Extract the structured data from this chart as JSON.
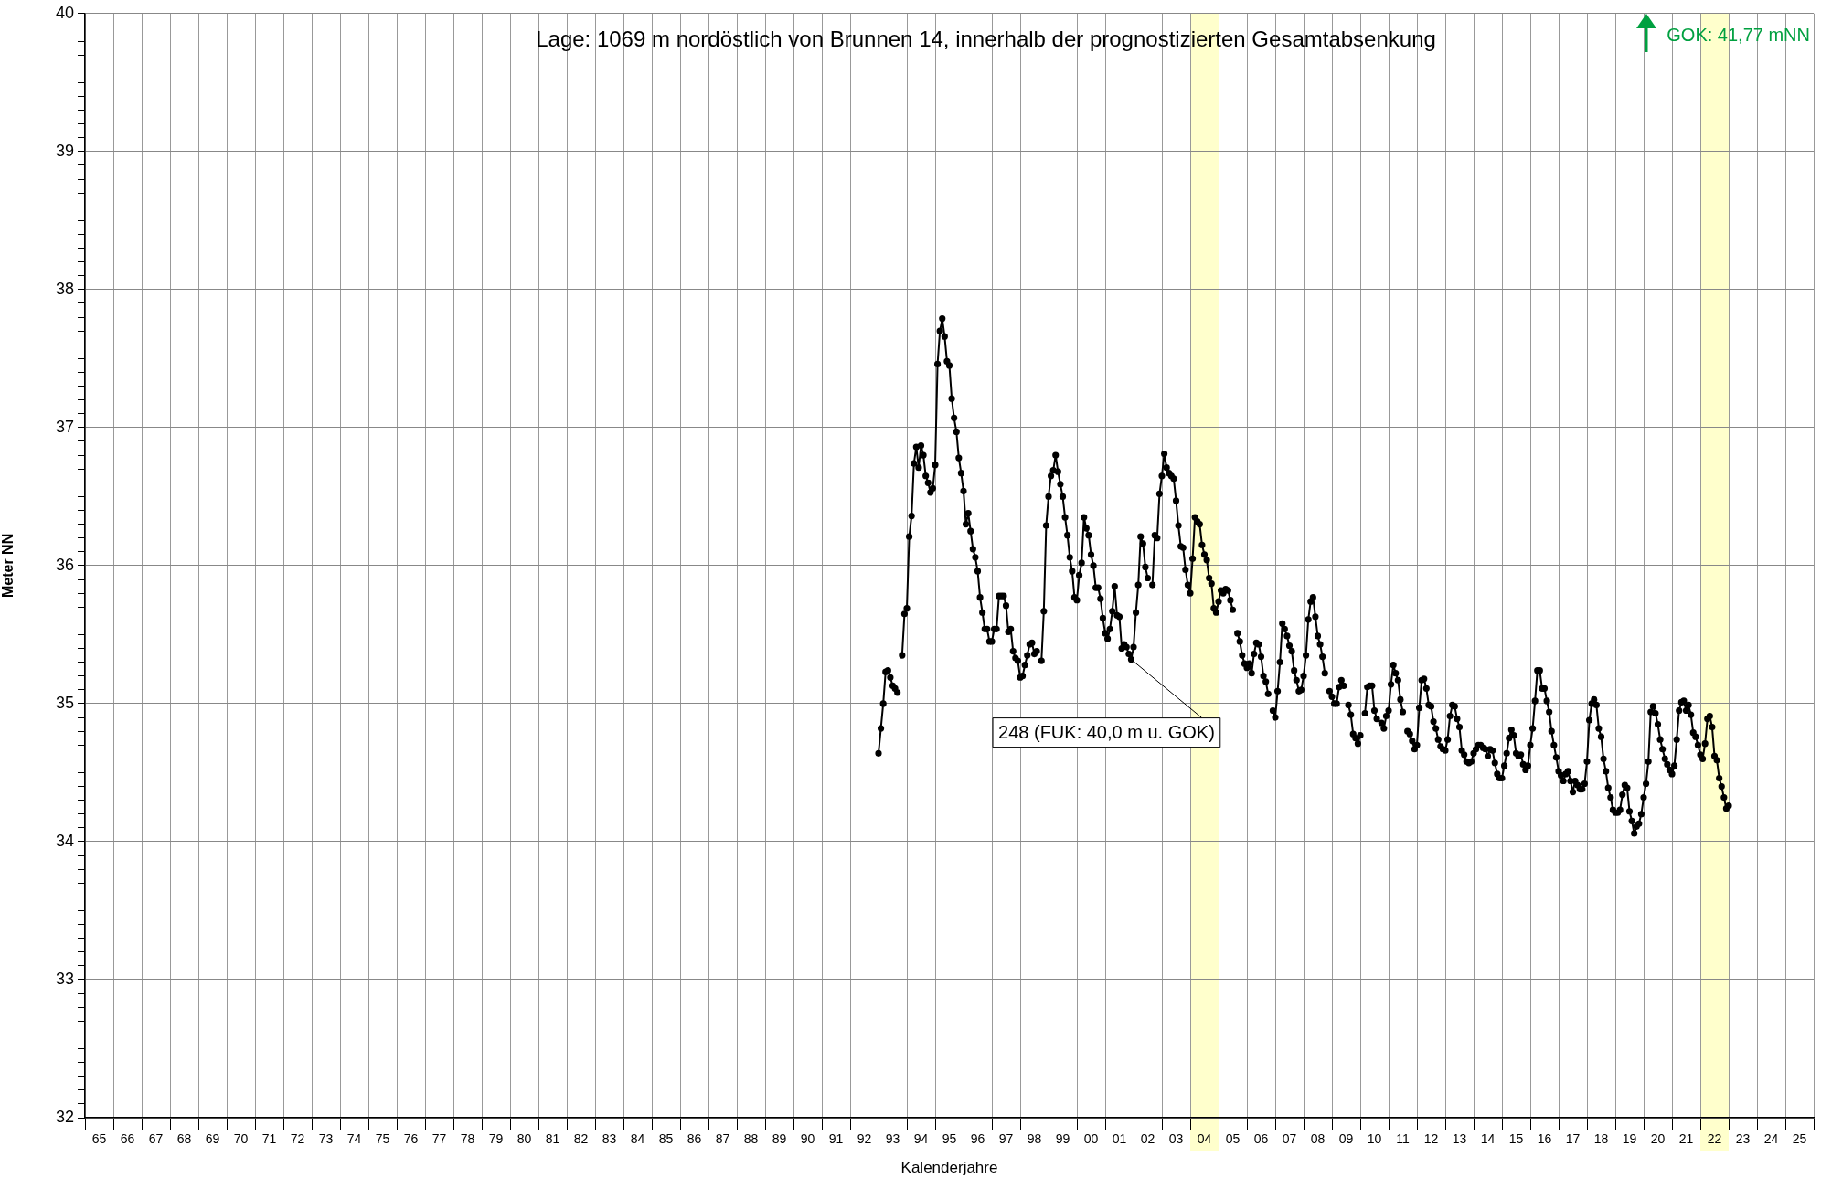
{
  "chart_data": {
    "type": "line",
    "title": "Lage: 1069 m nordöstlich von Brunnen 14, innerhalb der prognostizierten Gesamtabsenkung",
    "xlabel": "Kalenderjahre",
    "ylabel": "Meter NN",
    "annotations": [
      {
        "text": "248 (FUK: 40,0 m u. GOK)",
        "x": "2001-12",
        "y": 35.32
      },
      "GOK: 41,77 mNN"
    ],
    "grid": true,
    "marker": "circle",
    "xlim": [
      "1965",
      "2026"
    ],
    "ylim": [
      32,
      40
    ],
    "xticks": [
      {
        "value": "1965",
        "label": null
      },
      {
        "value": "1965-07",
        "label": "65"
      },
      {
        "value": "1966",
        "label": null
      },
      {
        "value": "1966-07",
        "label": "66"
      },
      {
        "value": "1967",
        "label": null
      },
      {
        "value": "1967-07",
        "label": "67"
      },
      {
        "value": "1968",
        "label": null
      },
      {
        "value": "1968-07",
        "label": "68"
      },
      {
        "value": "1969",
        "label": null
      },
      {
        "value": "1969-07",
        "label": "69"
      },
      {
        "value": "1970",
        "label": null
      },
      {
        "value": "1970-07",
        "label": "70"
      },
      {
        "value": "1971",
        "label": null
      },
      {
        "value": "1971-07",
        "label": "71"
      },
      {
        "value": "1972",
        "label": null
      },
      {
        "value": "1972-07",
        "label": "72"
      },
      {
        "value": "1973",
        "label": null
      },
      {
        "value": "1973-07",
        "label": "73"
      },
      {
        "value": "1974",
        "label": null
      },
      {
        "value": "1974-07",
        "label": "74"
      },
      {
        "value": "1975",
        "label": null
      },
      {
        "value": "1975-07",
        "label": "75"
      },
      {
        "value": "1976",
        "label": null
      },
      {
        "value": "1976-07",
        "label": "76"
      },
      {
        "value": "1977",
        "label": null
      },
      {
        "value": "1977-07",
        "label": "77"
      },
      {
        "value": "1978",
        "label": null
      },
      {
        "value": "1978-07",
        "label": "78"
      },
      {
        "value": "1979",
        "label": null
      },
      {
        "value": "1979-07",
        "label": "79"
      },
      {
        "value": "1980",
        "label": null
      },
      {
        "value": "1980-07",
        "label": "80"
      },
      {
        "value": "1981",
        "label": null
      },
      {
        "value": "1981-07",
        "label": "81"
      },
      {
        "value": "1982",
        "label": null
      },
      {
        "value": "1982-07",
        "label": "82"
      },
      {
        "value": "1983",
        "label": null
      },
      {
        "value": "1983-07",
        "label": "83"
      },
      {
        "value": "1984",
        "label": null
      },
      {
        "value": "1984-07",
        "label": "84"
      },
      {
        "value": "1985",
        "label": null
      },
      {
        "value": "1985-07",
        "label": "85"
      },
      {
        "value": "1986",
        "label": null
      },
      {
        "value": "1986-07",
        "label": "86"
      },
      {
        "value": "1987",
        "label": null
      },
      {
        "value": "1987-07",
        "label": "87"
      },
      {
        "value": "1988",
        "label": null
      },
      {
        "value": "1988-07",
        "label": "88"
      },
      {
        "value": "1989",
        "label": null
      },
      {
        "value": "1989-07",
        "label": "89"
      },
      {
        "value": "1990",
        "label": null
      },
      {
        "value": "1990-07",
        "label": "90"
      },
      {
        "value": "1991",
        "label": null
      },
      {
        "value": "1991-07",
        "label": "91"
      },
      {
        "value": "1992",
        "label": null
      },
      {
        "value": "1992-07",
        "label": "92"
      },
      {
        "value": "1993",
        "label": null
      },
      {
        "value": "1993-07",
        "label": "93"
      },
      {
        "value": "1994",
        "label": null
      },
      {
        "value": "1994-07",
        "label": "94"
      },
      {
        "value": "1995",
        "label": null
      },
      {
        "value": "1995-07",
        "label": "95"
      },
      {
        "value": "1996",
        "label": null
      },
      {
        "value": "1996-07",
        "label": "96"
      },
      {
        "value": "1997",
        "label": null
      },
      {
        "value": "1997-07",
        "label": "97"
      },
      {
        "value": "1998",
        "label": null
      },
      {
        "value": "1998-07",
        "label": "98"
      },
      {
        "value": "1999",
        "label": null
      },
      {
        "value": "1999-07",
        "label": "99"
      },
      {
        "value": "2000",
        "label": null
      },
      {
        "value": "2000-07",
        "label": "00"
      },
      {
        "value": "2001",
        "label": null
      },
      {
        "value": "2001-07",
        "label": "01"
      },
      {
        "value": "2002",
        "label": null
      },
      {
        "value": "2002-07",
        "label": "02"
      },
      {
        "value": "2003",
        "label": null
      },
      {
        "value": "2003-07",
        "label": "03"
      },
      {
        "value": "2004",
        "label": null
      },
      {
        "value": "2004-07",
        "label": "04"
      },
      {
        "value": "2005",
        "label": null
      },
      {
        "value": "2005-07",
        "label": "05"
      },
      {
        "value": "2006",
        "label": null
      },
      {
        "value": "2006-07",
        "label": "06"
      },
      {
        "value": "2007",
        "label": null
      },
      {
        "value": "2007-07",
        "label": "07"
      },
      {
        "value": "2008",
        "label": null
      },
      {
        "value": "2008-07",
        "label": "08"
      },
      {
        "value": "2009",
        "label": null
      },
      {
        "value": "2009-07",
        "label": "09"
      },
      {
        "value": "2010",
        "label": null
      },
      {
        "value": "2010-07",
        "label": "10"
      },
      {
        "value": "2011",
        "label": null
      },
      {
        "value": "2011-07",
        "label": "11"
      },
      {
        "value": "2012",
        "label": null
      },
      {
        "value": "2012-07",
        "label": "12"
      },
      {
        "value": "2013",
        "label": null
      },
      {
        "value": "2013-07",
        "label": "13"
      },
      {
        "value": "2014",
        "label": null
      },
      {
        "value": "2014-07",
        "label": "14"
      },
      {
        "value": "2015",
        "label": null
      },
      {
        "value": "2015-07",
        "label": "15"
      },
      {
        "value": "2016",
        "label": null
      },
      {
        "value": "2016-07",
        "label": "16"
      },
      {
        "value": "2017",
        "label": null
      },
      {
        "value": "2017-07",
        "label": "17"
      },
      {
        "value": "2018",
        "label": null
      },
      {
        "value": "2018-07",
        "label": "18"
      },
      {
        "value": "2019",
        "label": null
      },
      {
        "value": "2019-07",
        "label": "19"
      },
      {
        "value": "2020",
        "label": null
      },
      {
        "value": "2020-07",
        "label": "20"
      },
      {
        "value": "2021",
        "label": null
      },
      {
        "value": "2021-07",
        "label": "21"
      },
      {
        "value": "2022",
        "label": null
      },
      {
        "value": "2022-07",
        "label": "22"
      },
      {
        "value": "2023",
        "label": null
      },
      {
        "value": "2023-07",
        "label": "23"
      },
      {
        "value": "2024",
        "label": null
      },
      {
        "value": "2024-07",
        "label": "24"
      },
      {
        "value": "2025",
        "label": null
      },
      {
        "value": "2025-07",
        "label": "25"
      },
      {
        "value": "2026",
        "label": null
      }
    ],
    "yticks": [
      32,
      {
        "value": 32.1,
        "label": null
      },
      {
        "value": 32.2,
        "label": null
      },
      {
        "value": 32.3,
        "label": null
      },
      {
        "value": 32.4,
        "label": null
      },
      {
        "value": 32.5,
        "label": null
      },
      {
        "value": 32.6,
        "label": null
      },
      {
        "value": 32.7,
        "label": null
      },
      {
        "value": 32.8,
        "label": null
      },
      {
        "value": 32.9,
        "label": null
      },
      33,
      {
        "value": 33.1,
        "label": null
      },
      {
        "value": 33.2,
        "label": null
      },
      {
        "value": 33.3,
        "label": null
      },
      {
        "value": 33.4,
        "label": null
      },
      {
        "value": 33.5,
        "label": null
      },
      {
        "value": 33.6,
        "label": null
      },
      {
        "value": 33.7,
        "label": null
      },
      {
        "value": 33.8,
        "label": null
      },
      {
        "value": 33.9,
        "label": null
      },
      34,
      {
        "value": 34.1,
        "label": null
      },
      {
        "value": 34.2,
        "label": null
      },
      {
        "value": 34.3,
        "label": null
      },
      {
        "value": 34.4,
        "label": null
      },
      {
        "value": 34.5,
        "label": null
      },
      {
        "value": 34.6,
        "label": null
      },
      {
        "value": 34.7,
        "label": null
      },
      {
        "value": 34.8,
        "label": null
      },
      {
        "value": 34.9,
        "label": null
      },
      35,
      {
        "value": 35.1,
        "label": null
      },
      {
        "value": 35.2,
        "label": null
      },
      {
        "value": 35.3,
        "label": null
      },
      {
        "value": 35.4,
        "label": null
      },
      {
        "value": 35.5,
        "label": null
      },
      {
        "value": 35.6,
        "label": null
      },
      {
        "value": 35.7,
        "label": null
      },
      {
        "value": 35.8,
        "label": null
      },
      {
        "value": 35.9,
        "label": null
      },
      36,
      {
        "value": 36.1,
        "label": null
      },
      {
        "value": 36.2,
        "label": null
      },
      {
        "value": 36.3,
        "label": null
      },
      {
        "value": 36.4,
        "label": null
      },
      {
        "value": 36.5,
        "label": null
      },
      {
        "value": 36.6,
        "label": null
      },
      {
        "value": 36.7,
        "label": null
      },
      {
        "value": 36.8,
        "label": null
      },
      {
        "value": 36.9,
        "label": null
      },
      37,
      {
        "value": 37.1,
        "label": null
      },
      {
        "value": 37.2,
        "label": null
      },
      {
        "value": 37.3,
        "label": null
      },
      {
        "value": 37.4,
        "label": null
      },
      {
        "value": 37.5,
        "label": null
      },
      {
        "value": 37.6,
        "label": null
      },
      {
        "value": 37.7,
        "label": null
      },
      {
        "value": 37.8,
        "label": null
      },
      {
        "value": 37.9,
        "label": null
      },
      38,
      {
        "value": 38.1,
        "label": null
      },
      {
        "value": 38.2,
        "label": null
      },
      {
        "value": 38.3,
        "label": null
      },
      {
        "value": 38.4,
        "label": null
      },
      {
        "value": 38.5,
        "label": null
      },
      {
        "value": 38.6,
        "label": null
      },
      {
        "value": 38.7,
        "label": null
      },
      {
        "value": 38.8,
        "label": null
      },
      {
        "value": 38.9,
        "label": null
      },
      39,
      {
        "value": 39.1,
        "label": null
      },
      {
        "value": 39.2,
        "label": null
      },
      {
        "value": 39.3,
        "label": null
      },
      {
        "value": 39.4,
        "label": null
      },
      {
        "value": 39.5,
        "label": null
      },
      {
        "value": 39.6,
        "label": null
      },
      {
        "value": 39.7,
        "label": null
      },
      {
        "value": 39.8,
        "label": null
      },
      {
        "value": 39.9,
        "label": null
      },
      40
    ],
    "bands": [
      {
        "axis": "x",
        "from": "2004",
        "to": "2005",
        "color": "#ffffcc"
      },
      {
        "axis": "x",
        "from": "2022",
        "to": "2023",
        "color": "#ffffcc"
      }
    ],
    "x": [
      "1993-01",
      "1993-02",
      "1993-03",
      "1993-04",
      "1993-05",
      "1993-06",
      "1993-07",
      "1993-08",
      "1993-09",
      "1993-10",
      "1993-11",
      "1993-12",
      "1994-01",
      "1994-02",
      "1994-03",
      "1994-04",
      "1994-05",
      "1994-06",
      "1994-07",
      "1994-08",
      "1994-09",
      "1994-10",
      "1994-11",
      "1994-12",
      "1995-01",
      "1995-02",
      "1995-03",
      "1995-04",
      "1995-05",
      "1995-06",
      "1995-07",
      "1995-08",
      "1995-09",
      "1995-10",
      "1995-11",
      "1995-12",
      "1996-01",
      "1996-02",
      "1996-03",
      "1996-04",
      "1996-05",
      "1996-06",
      "1996-07",
      "1996-08",
      "1996-09",
      "1996-10",
      "1996-11",
      "1996-12",
      "1997-01",
      "1997-02",
      "1997-03",
      "1997-04",
      "1997-05",
      "1997-06",
      "1997-07",
      "1997-08",
      "1997-09",
      "1997-10",
      "1997-11",
      "1997-12",
      "1998-01",
      "1998-02",
      "1998-03",
      "1998-04",
      "1998-05",
      "1998-06",
      "1998-07",
      "1998-08",
      "1998-09",
      "1998-10",
      "1998-11",
      "1998-12",
      "1999-01",
      "1999-02",
      "1999-03",
      "1999-04",
      "1999-05",
      "1999-06",
      "1999-07",
      "1999-08",
      "1999-09",
      "1999-10",
      "1999-11",
      "1999-12",
      "2000-01",
      "2000-02",
      "2000-03",
      "2000-04",
      "2000-05",
      "2000-06",
      "2000-07",
      "2000-08",
      "2000-09",
      "2000-10",
      "2000-11",
      "2000-12",
      "2001-01",
      "2001-02",
      "2001-03",
      "2001-04",
      "2001-05",
      "2001-06",
      "2001-07",
      "2001-08",
      "2001-09",
      "2001-10",
      "2001-11",
      "2001-12",
      "2002-01",
      "2002-02",
      "2002-03",
      "2002-04",
      "2002-05",
      "2002-06",
      "2002-07",
      "2002-08",
      "2002-09",
      "2002-10",
      "2002-11",
      "2002-12",
      "2003-01",
      "2003-02",
      "2003-03",
      "2003-04",
      "2003-05",
      "2003-06",
      "2003-07",
      "2003-08",
      "2003-09",
      "2003-10",
      "2003-11",
      "2003-12",
      "2004-01",
      "2004-02",
      "2004-03",
      "2004-04",
      "2004-05",
      "2004-06",
      "2004-07",
      "2004-08",
      "2004-09",
      "2004-10",
      "2004-11",
      "2004-12",
      "2005-01",
      "2005-02",
      "2005-03",
      "2005-04",
      "2005-05",
      "2005-06",
      "2005-07",
      "2005-08",
      "2005-09",
      "2005-10",
      "2005-11",
      "2005-12",
      "2006-01",
      "2006-02",
      "2006-03",
      "2006-04",
      "2006-05",
      "2006-06",
      "2006-07",
      "2006-08",
      "2006-09",
      "2006-10",
      "2006-11",
      "2006-12",
      "2007-01",
      "2007-02",
      "2007-03",
      "2007-04",
      "2007-05",
      "2007-06",
      "2007-07",
      "2007-08",
      "2007-09",
      "2007-10",
      "2007-11",
      "2007-12",
      "2008-01",
      "2008-02",
      "2008-03",
      "2008-04",
      "2008-05",
      "2008-06",
      "2008-07",
      "2008-08",
      "2008-09",
      "2008-10",
      "2008-11",
      "2008-12",
      "2009-01",
      "2009-02",
      "2009-03",
      "2009-04",
      "2009-05",
      "2009-06",
      "2009-07",
      "2009-08",
      "2009-09",
      "2009-10",
      "2009-11",
      "2009-12",
      "2010-01",
      "2010-02",
      "2010-03",
      "2010-04",
      "2010-05",
      "2010-06",
      "2010-07",
      "2010-08",
      "2010-09",
      "2010-10",
      "2010-11",
      "2010-12",
      "2011-01",
      "2011-02",
      "2011-03",
      "2011-04",
      "2011-05",
      "2011-06",
      "2011-07",
      "2011-08",
      "2011-09",
      "2011-10",
      "2011-11",
      "2011-12",
      "2012-01",
      "2012-02",
      "2012-03",
      "2012-04",
      "2012-05",
      "2012-06",
      "2012-07",
      "2012-08",
      "2012-09",
      "2012-10",
      "2012-11",
      "2012-12",
      "2013-01",
      "2013-02",
      "2013-03",
      "2013-04",
      "2013-05",
      "2013-06",
      "2013-07",
      "2013-08",
      "2013-09",
      "2013-10",
      "2013-11",
      "2013-12",
      "2014-01",
      "2014-02",
      "2014-03",
      "2014-04",
      "2014-05",
      "2014-06",
      "2014-07",
      "2014-08",
      "2014-09",
      "2014-10",
      "2014-11",
      "2014-12",
      "2015-01",
      "2015-02",
      "2015-03",
      "2015-04",
      "2015-05",
      "2015-06",
      "2015-07",
      "2015-08",
      "2015-09",
      "2015-10",
      "2015-11",
      "2015-12",
      "2016-01",
      "2016-02",
      "2016-03",
      "2016-04",
      "2016-05",
      "2016-06",
      "2016-07",
      "2016-08",
      "2016-09",
      "2016-10",
      "2016-11",
      "2016-12",
      "2017-01",
      "2017-02",
      "2017-03",
      "2017-04",
      "2017-05",
      "2017-06",
      "2017-07",
      "2017-08",
      "2017-09",
      "2017-10",
      "2017-11",
      "2017-12",
      "2018-01",
      "2018-02",
      "2018-03",
      "2018-04",
      "2018-05",
      "2018-06",
      "2018-07",
      "2018-08",
      "2018-09",
      "2018-10",
      "2018-11",
      "2018-12",
      "2019-01",
      "2019-02",
      "2019-03",
      "2019-04",
      "2019-05",
      "2019-06",
      "2019-07",
      "2019-08",
      "2019-09",
      "2019-10",
      "2019-11",
      "2019-12",
      "2020-01",
      "2020-02",
      "2020-03",
      "2020-04",
      "2020-05",
      "2020-06",
      "2020-07",
      "2020-08",
      "2020-09",
      "2020-10",
      "2020-11",
      "2020-12",
      "2021-01",
      "2021-02",
      "2021-03",
      "2021-04",
      "2021-05",
      "2021-06",
      "2021-07",
      "2021-08",
      "2021-09",
      "2021-10",
      "2021-11",
      "2021-12",
      "2022-01",
      "2022-02",
      "2022-03",
      "2022-04",
      "2022-05",
      "2022-06",
      "2022-07",
      "2022-08",
      "2022-09",
      "2022-10",
      "2022-11",
      "2022-12",
      "2023-01"
    ],
    "series": [
      {
        "color": "#000000",
        "values": [
          34.64,
          34.82,
          35.0,
          35.23,
          35.24,
          35.19,
          35.13,
          35.11,
          35.08,
          null,
          35.35,
          35.65,
          35.69,
          36.21,
          36.36,
          36.74,
          36.86,
          36.71,
          36.87,
          36.8,
          36.65,
          36.6,
          36.53,
          36.56,
          36.73,
          37.46,
          37.7,
          37.79,
          37.66,
          37.48,
          37.45,
          37.21,
          37.07,
          36.97,
          36.78,
          36.67,
          36.54,
          36.3,
          36.38,
          36.25,
          36.12,
          36.06,
          35.96,
          35.77,
          35.66,
          35.54,
          35.54,
          35.45,
          35.45,
          35.54,
          35.54,
          35.78,
          35.78,
          35.78,
          35.71,
          35.52,
          35.54,
          35.38,
          35.33,
          35.31,
          35.19,
          35.2,
          35.28,
          35.35,
          35.43,
          35.44,
          35.36,
          35.38,
          null,
          35.31,
          35.67,
          36.29,
          36.5,
          36.65,
          36.69,
          36.8,
          36.68,
          36.59,
          36.5,
          36.35,
          36.22,
          36.06,
          35.96,
          35.77,
          35.75,
          35.93,
          36.02,
          36.35,
          36.27,
          36.22,
          36.08,
          36.0,
          35.84,
          35.84,
          35.76,
          35.62,
          35.51,
          35.47,
          35.54,
          35.67,
          35.85,
          35.64,
          35.63,
          35.4,
          35.43,
          35.41,
          35.36,
          35.32,
          35.41,
          35.66,
          35.86,
          36.21,
          36.16,
          35.99,
          35.91,
          null,
          35.86,
          36.22,
          36.2,
          36.52,
          36.65,
          36.81,
          36.71,
          36.67,
          36.65,
          36.63,
          36.47,
          36.29,
          36.14,
          36.13,
          35.97,
          35.86,
          35.8,
          36.05,
          36.35,
          36.32,
          36.3,
          36.15,
          36.08,
          36.04,
          35.91,
          35.87,
          35.69,
          35.66,
          35.74,
          35.82,
          35.8,
          35.83,
          35.82,
          35.75,
          35.68,
          null,
          35.51,
          35.45,
          35.35,
          35.29,
          35.26,
          35.29,
          35.22,
          35.36,
          35.44,
          35.43,
          35.34,
          35.2,
          35.16,
          35.07,
          null,
          34.95,
          34.9,
          35.09,
          35.3,
          35.58,
          35.54,
          35.49,
          35.42,
          35.38,
          35.24,
          35.17,
          35.09,
          35.1,
          35.2,
          35.35,
          35.61,
          35.74,
          35.77,
          35.63,
          35.49,
          35.43,
          35.34,
          35.22,
          null,
          35.09,
          35.05,
          35.0,
          35.0,
          35.12,
          35.17,
          35.13,
          null,
          34.99,
          34.92,
          34.78,
          34.75,
          34.71,
          34.77,
          null,
          34.93,
          35.12,
          35.13,
          35.13,
          34.95,
          34.89,
          null,
          34.86,
          34.82,
          34.91,
          34.95,
          35.14,
          35.28,
          35.22,
          35.17,
          35.03,
          34.94,
          null,
          34.8,
          34.78,
          34.73,
          34.67,
          34.7,
          34.97,
          35.17,
          35.18,
          35.11,
          34.99,
          34.98,
          34.87,
          34.82,
          34.74,
          34.69,
          34.67,
          34.66,
          34.74,
          34.91,
          34.99,
          34.98,
          34.89,
          34.83,
          34.66,
          34.63,
          34.58,
          34.57,
          34.58,
          34.64,
          34.67,
          34.7,
          34.7,
          34.68,
          34.67,
          34.62,
          34.67,
          34.66,
          34.57,
          34.49,
          34.46,
          34.46,
          34.55,
          34.64,
          34.75,
          34.81,
          34.77,
          34.64,
          34.62,
          34.63,
          34.56,
          34.52,
          34.55,
          34.7,
          34.82,
          35.02,
          35.24,
          35.24,
          35.11,
          35.11,
          35.02,
          34.94,
          34.8,
          34.7,
          34.61,
          34.51,
          34.48,
          34.44,
          34.49,
          34.51,
          34.44,
          34.36,
          34.44,
          34.41,
          34.38,
          34.38,
          34.42,
          34.58,
          34.88,
          35.0,
          35.03,
          34.99,
          34.82,
          34.76,
          34.6,
          34.51,
          34.39,
          34.32,
          34.23,
          34.21,
          34.21,
          34.23,
          34.34,
          34.41,
          34.39,
          34.22,
          34.15,
          34.06,
          34.11,
          34.13,
          34.2,
          34.32,
          34.42,
          34.58,
          34.94,
          34.98,
          34.93,
          34.85,
          34.74,
          34.67,
          34.6,
          34.56,
          34.52,
          34.49,
          34.55,
          34.74,
          34.95,
          35.01,
          35.02,
          34.95,
          34.99,
          34.92,
          34.79,
          34.76,
          34.7,
          34.63,
          34.6,
          34.71,
          34.89,
          34.91,
          34.83,
          34.62,
          34.59,
          34.46,
          34.4,
          34.32,
          34.24,
          34.26
        ]
      }
    ]
  }
}
